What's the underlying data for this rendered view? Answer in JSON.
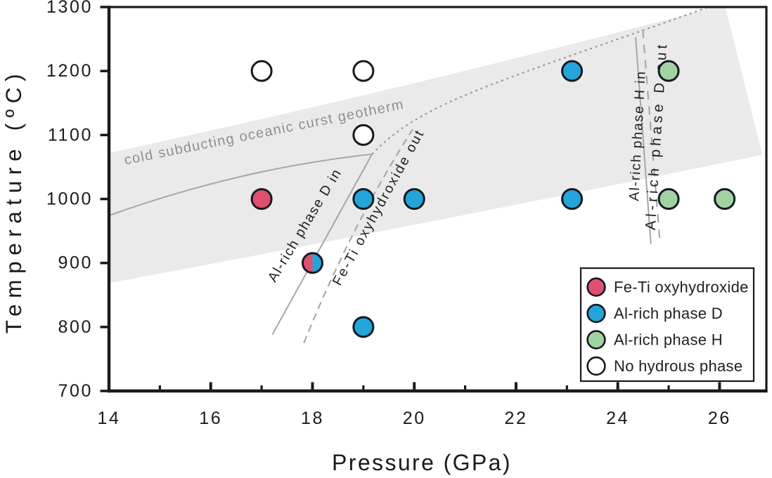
{
  "chart_data": {
    "type": "scatter",
    "title": "",
    "xlabel": "Pressure (GPa)",
    "ylabel": "Temperature (ºC)",
    "x_range": [
      14,
      26.92
    ],
    "y_range": [
      700,
      1300
    ],
    "x_ticks": [
      14,
      16,
      18,
      20,
      22,
      24,
      26
    ],
    "x_minor_ticks": [
      15,
      17,
      19,
      21,
      23,
      25
    ],
    "y_ticks": [
      700,
      800,
      900,
      1000,
      1100,
      1200,
      1300
    ],
    "grid": false,
    "legend_position": "lower right",
    "phase_colors": {
      "feti": "#e0506e",
      "phaseD": "#23a5da",
      "phaseH": "#a3d2a2",
      "none": "#ffffff"
    },
    "legend": [
      {
        "label": "Fe-Ti oxyhydroxide",
        "phase": "feti"
      },
      {
        "label": "Al-rich phase D",
        "phase": "phaseD"
      },
      {
        "label": "Al-rich phase H",
        "phase": "phaseH"
      },
      {
        "label": "No hydrous phase",
        "phase": "none"
      }
    ],
    "points": [
      {
        "pressure": 17,
        "temperature": 1200,
        "phases": [
          "none"
        ]
      },
      {
        "pressure": 19,
        "temperature": 1200,
        "phases": [
          "none"
        ]
      },
      {
        "pressure": 23.1,
        "temperature": 1200,
        "phases": [
          "phaseD"
        ]
      },
      {
        "pressure": 25,
        "temperature": 1200,
        "phases": [
          "phaseH"
        ]
      },
      {
        "pressure": 19,
        "temperature": 1100,
        "phases": [
          "none"
        ]
      },
      {
        "pressure": 17,
        "temperature": 1000,
        "phases": [
          "feti"
        ]
      },
      {
        "pressure": 19,
        "temperature": 1000,
        "phases": [
          "phaseD"
        ]
      },
      {
        "pressure": 20,
        "temperature": 1000,
        "phases": [
          "phaseD"
        ]
      },
      {
        "pressure": 23.1,
        "temperature": 1000,
        "phases": [
          "phaseD"
        ]
      },
      {
        "pressure": 25,
        "temperature": 1000,
        "phases": [
          "phaseH"
        ]
      },
      {
        "pressure": 26.1,
        "temperature": 1000,
        "phases": [
          "phaseH"
        ]
      },
      {
        "pressure": 18,
        "temperature": 900,
        "phases": [
          "feti",
          "phaseD"
        ]
      },
      {
        "pressure": 19,
        "temperature": 800,
        "phases": [
          "phaseD"
        ]
      }
    ],
    "band": {
      "label": "cold subducting oceanic curst geotherm",
      "fill": "#eaeaea",
      "label_color": "#8f8f8f",
      "top_edge": [
        [
          14,
          1072
        ],
        [
          20.05,
          1176
        ],
        [
          26.1,
          1304
        ]
      ],
      "right_corner": [
        26.84,
        1069
      ],
      "bottom_edge_ctrl": [
        20.43,
        964
      ],
      "bottom_edge_end": [
        14.03,
        869
      ],
      "label_anchor": [
        17.05,
        1104
      ],
      "label_angle": -11.4
    },
    "curves": [
      {
        "id": "geotherm-line",
        "style": "solid",
        "shape": "quad",
        "points": [
          [
            14.03,
            975
          ],
          [
            16.6,
            1048
          ],
          [
            19.17,
            1070
          ]
        ],
        "label": ""
      },
      {
        "id": "geotherm-extension",
        "style": "dotted",
        "shape": "cubic",
        "points": [
          [
            19.17,
            1070
          ],
          [
            20.15,
            1152
          ],
          [
            21.53,
            1179
          ],
          [
            25.75,
            1299
          ]
        ],
        "label": ""
      },
      {
        "id": "al-rich-phase-d-in",
        "style": "solid",
        "shape": "line",
        "points": [
          [
            17.21,
            788
          ],
          [
            19.17,
            1070
          ]
        ],
        "label": "Al-rich phase D in",
        "label_anchor": [
          17.85,
          959
        ],
        "label_angle": -59
      },
      {
        "id": "fe-ti-oxyhydroxide-out",
        "style": "dashed",
        "shape": "quad",
        "points": [
          [
            17.83,
            775
          ],
          [
            18.77,
            960
          ],
          [
            19.97,
            1109
          ]
        ],
        "label": "Fe-Ti oxyhydroxide out",
        "label_anchor": [
          19.3,
          987
        ],
        "label_angle": -61.3
      },
      {
        "id": "al-rich-phase-h-in",
        "style": "solid",
        "shape": "line",
        "points": [
          [
            24.35,
            1253
          ],
          [
            24.65,
            930
          ]
        ],
        "label": "Al-rich phase H in",
        "label_anchor": [
          24.39,
          1099
        ],
        "label_angle": -87
      },
      {
        "id": "al-rich-phase-d-out",
        "style": "dashed",
        "shape": "line",
        "points": [
          [
            24.49,
            1265
          ],
          [
            24.83,
            931
          ]
        ],
        "label": "Al-rich phase D out",
        "label_anchor": [
          24.76,
          1099
        ],
        "label_angle": -86.4
      }
    ]
  }
}
